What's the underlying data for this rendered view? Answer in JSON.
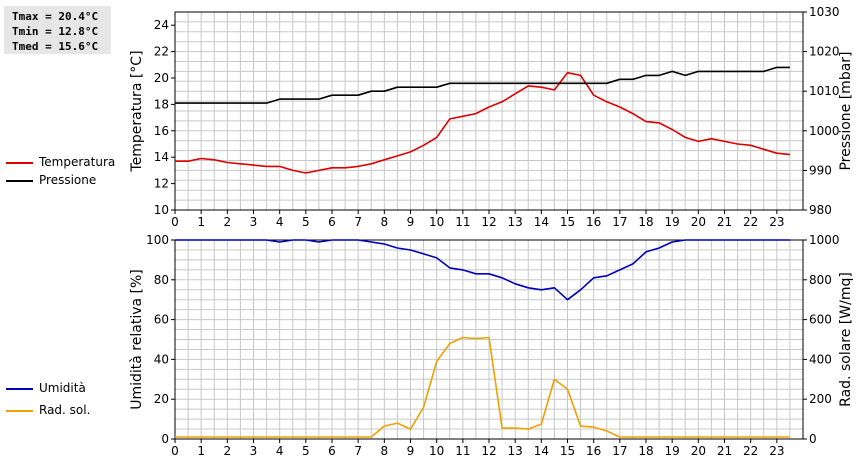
{
  "stats": {
    "tmax": "Tmax = 20.4°C",
    "tmin": "Tmin = 12.8°C",
    "tmed": "Tmed = 15.6°C"
  },
  "legend": {
    "temperatura": "Temperatura",
    "pressione": "Pressione",
    "umidita": "Umidità",
    "rad_sol": "Rad. sol."
  },
  "colors": {
    "temperatura": "#dd0000",
    "pressione": "#000000",
    "umidita": "#0000bb",
    "rad_sol": "#f0a000",
    "grid": "#c8c8c8"
  },
  "chart_data": [
    {
      "type": "line",
      "x_ticks": [
        "0",
        "1",
        "2",
        "3",
        "4",
        "5",
        "6",
        "7",
        "8",
        "9",
        "10",
        "11",
        "12",
        "13",
        "14",
        "15",
        "16",
        "17",
        "18",
        "19",
        "20",
        "21",
        "22",
        "23"
      ],
      "xlim": [
        0,
        24
      ],
      "ylabel": "Temperatura [°C]",
      "ylabel_right": "Pressione [mbar]",
      "ylim": [
        10,
        25
      ],
      "y_ticks": [
        "10",
        "12",
        "14",
        "16",
        "18",
        "20",
        "22",
        "24"
      ],
      "ylim_right": [
        980,
        1030
      ],
      "y_ticks_right": [
        "980",
        "990",
        "1000",
        "1010",
        "1020",
        "1030"
      ],
      "grid": true,
      "series": [
        {
          "name": "Temperatura",
          "axis": "left",
          "x": [
            0,
            0.5,
            1,
            1.5,
            2,
            2.5,
            3,
            3.5,
            4,
            4.5,
            5,
            5.5,
            6,
            6.5,
            7,
            7.5,
            8,
            8.5,
            9,
            9.5,
            10,
            10.5,
            11,
            11.5,
            12,
            12.5,
            13,
            13.5,
            14,
            14.5,
            15,
            15.5,
            16,
            16.5,
            17,
            17.5,
            18,
            18.5,
            19,
            19.5,
            20,
            20.5,
            21,
            21.5,
            22,
            22.5,
            23,
            23.5
          ],
          "values": [
            13.7,
            13.7,
            13.9,
            13.8,
            13.6,
            13.5,
            13.4,
            13.3,
            13.3,
            13.0,
            12.8,
            13.0,
            13.2,
            13.2,
            13.3,
            13.5,
            13.8,
            14.1,
            14.4,
            14.9,
            15.5,
            16.9,
            17.1,
            17.3,
            17.8,
            18.2,
            18.8,
            19.4,
            19.3,
            19.1,
            20.4,
            20.2,
            18.7,
            18.2,
            17.8,
            17.3,
            16.7,
            16.6,
            16.1,
            15.5,
            15.2,
            15.4,
            15.2,
            15.0,
            14.9,
            14.6,
            14.3,
            14.2
          ]
        },
        {
          "name": "Pressione",
          "axis": "right",
          "x": [
            0,
            0.5,
            1,
            1.5,
            2,
            2.5,
            3,
            3.5,
            4,
            4.5,
            5,
            5.5,
            6,
            6.5,
            7,
            7.5,
            8,
            8.5,
            9,
            9.5,
            10,
            10.5,
            11,
            11.5,
            12,
            12.5,
            13,
            13.5,
            14,
            14.5,
            15,
            15.5,
            16,
            16.5,
            17,
            17.5,
            18,
            18.5,
            19,
            19.5,
            20,
            20.5,
            21,
            21.5,
            22,
            22.5,
            23,
            23.5
          ],
          "values": [
            1007,
            1007,
            1007,
            1007,
            1007,
            1007,
            1007,
            1007,
            1008,
            1008,
            1008,
            1008,
            1009,
            1009,
            1009,
            1010,
            1010,
            1011,
            1011,
            1011,
            1011,
            1012,
            1012,
            1012,
            1012,
            1012,
            1012,
            1012,
            1012,
            1012,
            1012,
            1012,
            1012,
            1012,
            1013,
            1013,
            1014,
            1014,
            1015,
            1014,
            1015,
            1015,
            1015,
            1015,
            1015,
            1015,
            1016,
            1016
          ]
        }
      ]
    },
    {
      "type": "line",
      "x_ticks": [
        "0",
        "1",
        "2",
        "3",
        "4",
        "5",
        "6",
        "7",
        "8",
        "9",
        "10",
        "11",
        "12",
        "13",
        "14",
        "15",
        "16",
        "17",
        "18",
        "19",
        "20",
        "21",
        "22",
        "23"
      ],
      "xlim": [
        0,
        24
      ],
      "ylabel": "Umidità relativa [%]",
      "ylabel_right": "Rad. solare [W/mq]",
      "ylim": [
        0,
        100
      ],
      "y_ticks": [
        "0",
        "20",
        "40",
        "60",
        "80",
        "100"
      ],
      "ylim_right": [
        0,
        1000
      ],
      "y_ticks_right": [
        "0",
        "200",
        "400",
        "600",
        "800",
        "1000"
      ],
      "grid": true,
      "series": [
        {
          "name": "Umidità",
          "axis": "left",
          "x": [
            0,
            0.5,
            1,
            1.5,
            2,
            2.5,
            3,
            3.5,
            4,
            4.5,
            5,
            5.5,
            6,
            6.5,
            7,
            7.5,
            8,
            8.5,
            9,
            9.5,
            10,
            10.5,
            11,
            11.5,
            12,
            12.5,
            13,
            13.5,
            14,
            14.5,
            15,
            15.5,
            16,
            16.5,
            17,
            17.5,
            18,
            18.5,
            19,
            19.5,
            20,
            20.5,
            21,
            21.5,
            22,
            22.5,
            23,
            23.5
          ],
          "values": [
            100,
            100,
            100,
            100,
            100,
            100,
            100,
            100,
            99,
            100,
            100,
            99,
            100,
            100,
            100,
            99,
            98,
            96,
            95,
            93,
            91,
            86,
            85,
            83,
            83,
            81,
            78,
            76,
            75,
            76,
            70,
            75,
            81,
            82,
            85,
            88,
            94,
            96,
            99,
            100,
            100,
            100,
            100,
            100,
            100,
            100,
            100,
            100
          ]
        },
        {
          "name": "Rad. sol.",
          "axis": "right",
          "x": [
            0,
            0.5,
            1,
            1.5,
            2,
            2.5,
            3,
            3.5,
            4,
            4.5,
            5,
            5.5,
            6,
            6.5,
            7,
            7.5,
            8,
            8.5,
            9,
            9.5,
            10,
            10.5,
            11,
            11.5,
            12,
            12.5,
            13,
            13.5,
            14,
            14.5,
            15,
            15.5,
            16,
            16.5,
            17,
            17.5,
            18,
            18.5,
            19,
            19.5,
            20,
            20.5,
            21,
            21.5,
            22,
            22.5,
            23,
            23.5
          ],
          "values": [
            10,
            10,
            10,
            10,
            10,
            10,
            10,
            10,
            10,
            10,
            10,
            10,
            10,
            10,
            10,
            10,
            65,
            80,
            50,
            160,
            390,
            480,
            510,
            505,
            510,
            55,
            55,
            50,
            75,
            300,
            250,
            65,
            60,
            40,
            10,
            10,
            10,
            10,
            10,
            10,
            10,
            10,
            10,
            10,
            10,
            10,
            10,
            10
          ]
        }
      ]
    }
  ]
}
